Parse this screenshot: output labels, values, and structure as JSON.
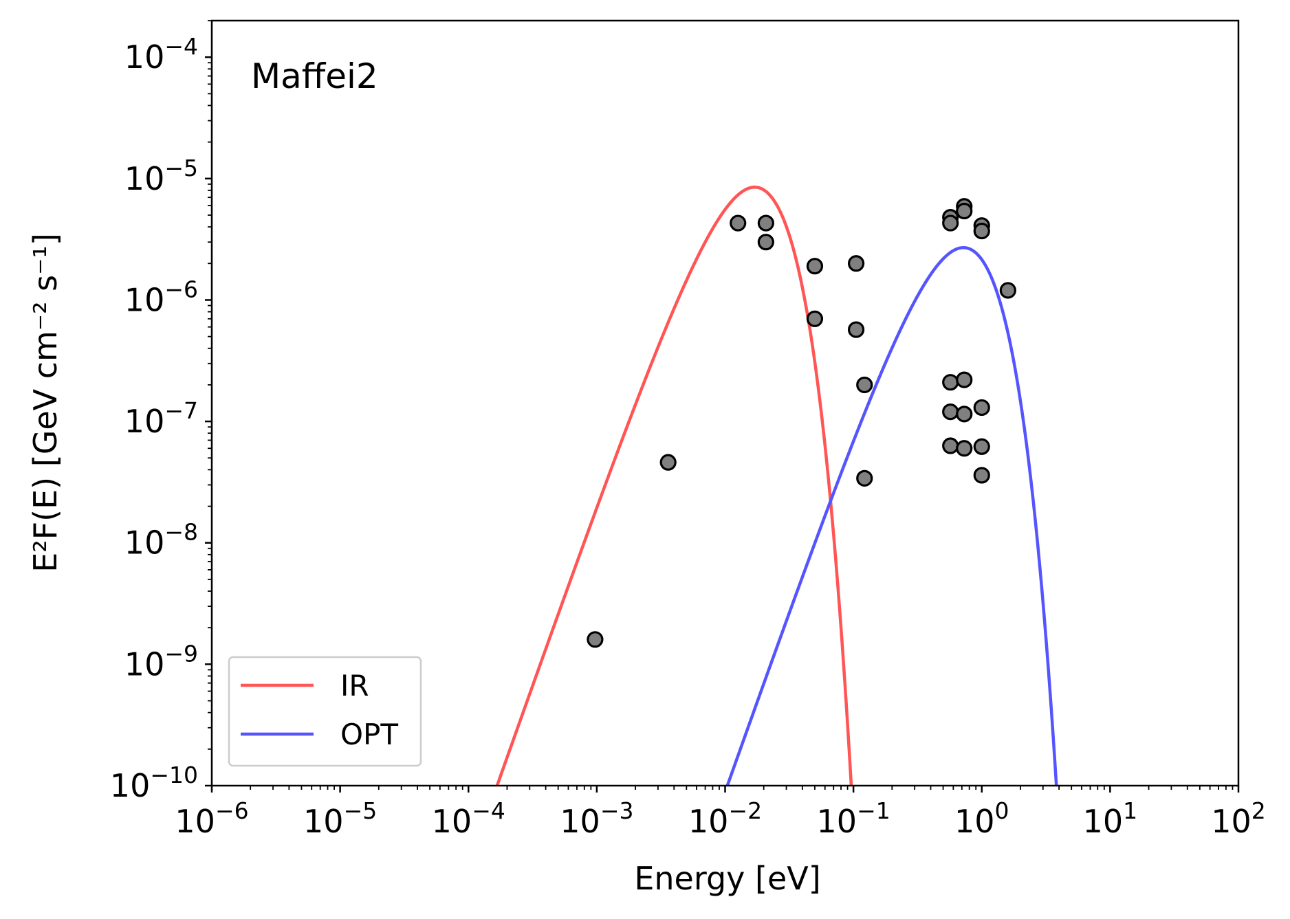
{
  "chart_data": {
    "type": "scatter",
    "annotation": "Maffei2",
    "xlabel": "Energy [eV]",
    "ylabel": "E²F(E) [GeV cm⁻² s⁻¹]",
    "x_scale": "log",
    "y_scale": "log",
    "xlim": [
      1e-06,
      100
    ],
    "ylim": [
      1e-10,
      0.0002
    ],
    "x_ticks": [
      {
        "mantissa": "10",
        "exponent": "−6",
        "value": 1e-06
      },
      {
        "mantissa": "10",
        "exponent": "−5",
        "value": 1e-05
      },
      {
        "mantissa": "10",
        "exponent": "−4",
        "value": 0.0001
      },
      {
        "mantissa": "10",
        "exponent": "−3",
        "value": 0.001
      },
      {
        "mantissa": "10",
        "exponent": "−2",
        "value": 0.01
      },
      {
        "mantissa": "10",
        "exponent": "−1",
        "value": 0.1
      },
      {
        "mantissa": "10",
        "exponent": "0",
        "value": 1
      },
      {
        "mantissa": "10",
        "exponent": "1",
        "value": 10
      },
      {
        "mantissa": "10",
        "exponent": "2",
        "value": 100
      }
    ],
    "y_ticks": [
      {
        "mantissa": "10",
        "exponent": "−10",
        "value": 1e-10
      },
      {
        "mantissa": "10",
        "exponent": "−9",
        "value": 1e-09
      },
      {
        "mantissa": "10",
        "exponent": "−8",
        "value": 1e-08
      },
      {
        "mantissa": "10",
        "exponent": "−7",
        "value": 1e-07
      },
      {
        "mantissa": "10",
        "exponent": "−6",
        "value": 1e-06
      },
      {
        "mantissa": "10",
        "exponent": "−5",
        "value": 1e-05
      },
      {
        "mantissa": "10",
        "exponent": "−4",
        "value": 0.0001
      }
    ],
    "grid": false,
    "legend_position": "lower-left",
    "series": [
      {
        "name": "IR",
        "kind": "line",
        "color": "#ff5555",
        "peak_x": 0.017,
        "peak_y": 8.5e-06,
        "curve": "blackbody"
      },
      {
        "name": "OPT",
        "kind": "line",
        "color": "#5555ff",
        "peak_x": 0.72,
        "peak_y": 2.7e-06,
        "curve": "blackbody"
      }
    ],
    "points": {
      "marker_fill": "#808080",
      "marker_edge": "#000000",
      "data": [
        {
          "x": 0.00097,
          "y": 1.6e-09
        },
        {
          "x": 0.0036,
          "y": 4.6e-08
        },
        {
          "x": 0.0126,
          "y": 4.3e-06
        },
        {
          "x": 0.0208,
          "y": 4.3e-06
        },
        {
          "x": 0.0208,
          "y": 3e-06
        },
        {
          "x": 0.05,
          "y": 1.9e-06
        },
        {
          "x": 0.05,
          "y": 7e-07
        },
        {
          "x": 0.105,
          "y": 2e-06
        },
        {
          "x": 0.105,
          "y": 5.7e-07
        },
        {
          "x": 0.122,
          "y": 2e-07
        },
        {
          "x": 0.122,
          "y": 3.4e-08
        },
        {
          "x": 0.57,
          "y": 4.8e-06
        },
        {
          "x": 0.57,
          "y": 4.3e-06
        },
        {
          "x": 0.57,
          "y": 2.1e-07
        },
        {
          "x": 0.57,
          "y": 1.2e-07
        },
        {
          "x": 0.57,
          "y": 6.3e-08
        },
        {
          "x": 0.73,
          "y": 5.9e-06
        },
        {
          "x": 0.73,
          "y": 5.4e-06
        },
        {
          "x": 0.73,
          "y": 2.2e-07
        },
        {
          "x": 0.73,
          "y": 1.15e-07
        },
        {
          "x": 0.73,
          "y": 6e-08
        },
        {
          "x": 1.0,
          "y": 4.1e-06
        },
        {
          "x": 1.0,
          "y": 3.7e-06
        },
        {
          "x": 1.0,
          "y": 1.3e-07
        },
        {
          "x": 1.0,
          "y": 6.2e-08
        },
        {
          "x": 1.0,
          "y": 3.6e-08
        },
        {
          "x": 1.6,
          "y": 1.2e-06
        }
      ]
    }
  }
}
